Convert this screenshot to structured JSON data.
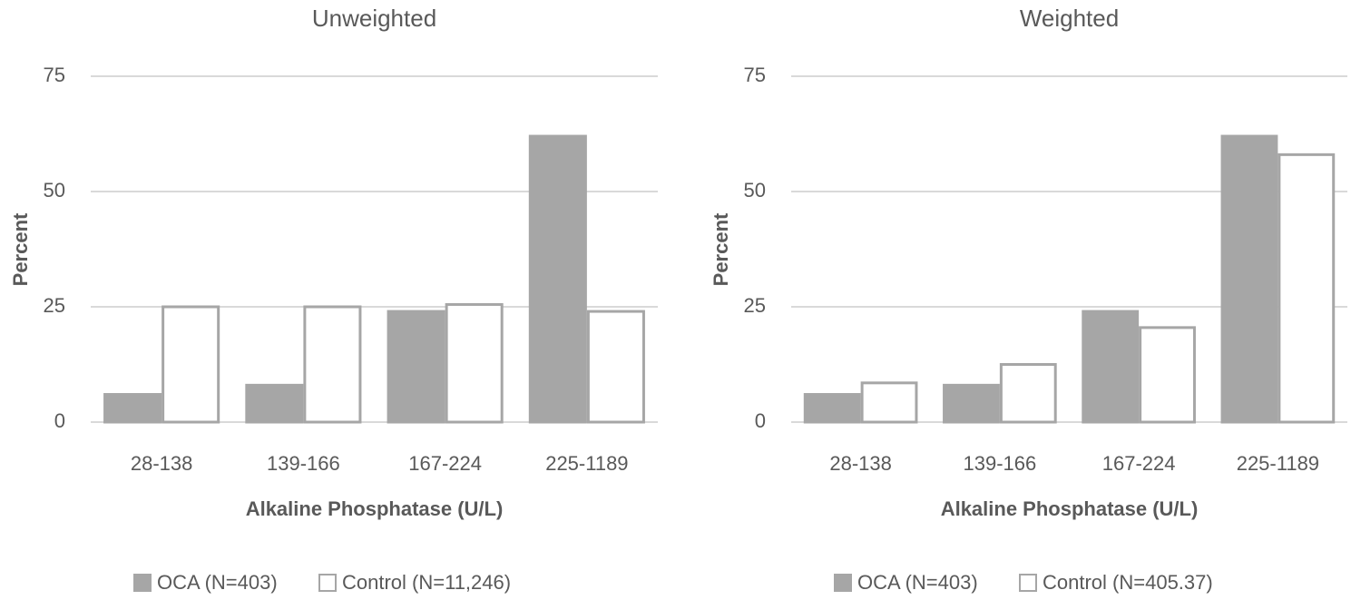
{
  "chart_data": [
    {
      "type": "bar",
      "title": "Unweighted",
      "xlabel": "Alkaline Phosphatase (U/L)",
      "ylabel": "Percent",
      "categories": [
        "28-138",
        "139-166",
        "167-224",
        "225-1189"
      ],
      "series": [
        {
          "name": "OCA (N=403)",
          "color": "#a6a6a6",
          "values": [
            6,
            8,
            24,
            62
          ]
        },
        {
          "name": "Control (N=11,246)",
          "color": "#ffffff",
          "values": [
            25,
            25,
            25.5,
            24
          ]
        }
      ],
      "ylim": [
        0,
        75
      ],
      "yticks": [
        0,
        25,
        50,
        75
      ],
      "grid": true
    },
    {
      "type": "bar",
      "title": "Weighted",
      "xlabel": "Alkaline Phosphatase (U/L)",
      "ylabel": "Percent",
      "categories": [
        "28-138",
        "139-166",
        "167-224",
        "225-1189"
      ],
      "series": [
        {
          "name": "OCA (N=403)",
          "color": "#a6a6a6",
          "values": [
            6,
            8,
            24,
            62
          ]
        },
        {
          "name": "Control (N=405.37)",
          "color": "#ffffff",
          "values": [
            8.5,
            12.5,
            20.5,
            58
          ]
        }
      ],
      "ylim": [
        0,
        75
      ],
      "yticks": [
        0,
        25,
        50,
        75
      ],
      "grid": true
    }
  ]
}
